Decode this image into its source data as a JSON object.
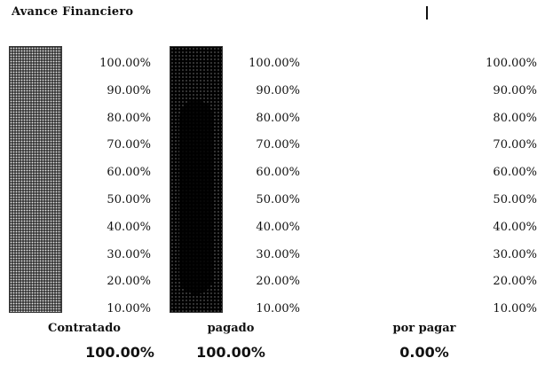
{
  "chart_data": {
    "type": "bar",
    "title": "Avance Financiero",
    "categories": [
      "Contratado",
      "pagado",
      "por pagar"
    ],
    "values": [
      100.0,
      100.0,
      0.0
    ],
    "value_labels": [
      "100.00%",
      "100.00%",
      "0.00%"
    ],
    "yticks": [
      "100.00%",
      "90.00%",
      "80.00%",
      "70.00%",
      "60.00%",
      "50.00%",
      "40.00%",
      "30.00%",
      "20.00%",
      "10.00%"
    ],
    "ylim": [
      0,
      100
    ],
    "grid": false,
    "legend": "none",
    "colors": {
      "contratado": "#5a5a5a",
      "pagado": "#000000"
    }
  }
}
